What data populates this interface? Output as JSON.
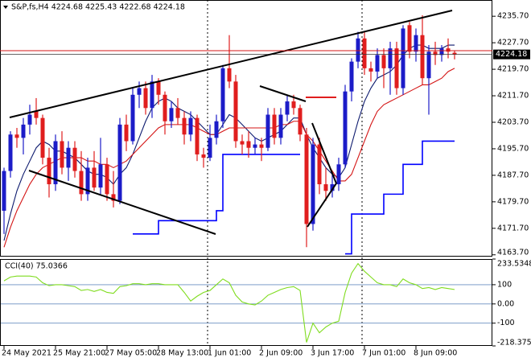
{
  "chart_data": [
    {
      "type": "candlestick",
      "title": "S&P,fs,H4  4224.68 4225.43 4222.68 4224.18",
      "categories": [
        "24 May 2021",
        null,
        null,
        null,
        null,
        null,
        null,
        null,
        "25 May 21:00",
        null,
        null,
        null,
        null,
        null,
        null,
        null,
        "27 May 05:00",
        null,
        null,
        null,
        null,
        null,
        null,
        null,
        "28 May 13:00",
        null,
        null,
        null,
        null,
        null,
        null,
        null,
        "1 Jun 01:00",
        null,
        null,
        null,
        null,
        null,
        null,
        null,
        "2 Jun 09:00",
        null,
        null,
        null,
        null,
        null,
        null,
        null,
        "3 Jun 17:00",
        null,
        null,
        null,
        null,
        null,
        null,
        null,
        "7 Jun 01:00",
        null,
        null,
        null,
        null,
        null,
        null,
        null,
        "8 Jun 09:00",
        null,
        null,
        null,
        null,
        null,
        null
      ],
      "open": [
        4177,
        4189,
        4200,
        4199,
        4203,
        4207,
        4205,
        4193,
        4185,
        4198,
        4190,
        4196,
        4189,
        4182,
        4190,
        4184,
        4191,
        4182,
        4180,
        4203,
        4198,
        4212,
        4214,
        4208,
        4216,
        4212,
        4204,
        4208,
        4205,
        4200,
        4205,
        4194,
        4193,
        4199,
        4204,
        4220,
        4216,
        4198,
        4198,
        4196,
        4197,
        4196,
        4206,
        4199,
        4206,
        4210,
        4208,
        4200,
        4173,
        4197,
        4185,
        4183,
        4185,
        4191,
        4213,
        4222,
        4229,
        4220,
        4219,
        4224,
        4220,
        4226,
        4214,
        4233,
        4225,
        4230,
        4217,
        4225,
        4224,
        4226,
        4224.68
      ],
      "high": [
        4190,
        4201,
        4202,
        4205,
        4209,
        4211,
        4206,
        4196,
        4200,
        4201,
        4198,
        4198,
        4195,
        4193,
        4195,
        4199,
        4193,
        4189,
        4205,
        4206,
        4214,
        4216,
        4216,
        4218,
        4217,
        4213,
        4210,
        4211,
        4207,
        4207,
        4206,
        4196,
        4203,
        4206,
        4221,
        4230,
        4218,
        4200,
        4201,
        4199,
        4199,
        4208,
        4208,
        4208,
        4212,
        4212,
        4209,
        4202,
        4199,
        4199,
        4190,
        4188,
        4193,
        4215,
        4223,
        4231,
        4231,
        4222,
        4226,
        4226,
        4228,
        4228,
        4233,
        4234,
        4232,
        4236,
        4227,
        4228,
        4227,
        4229,
        4225.43
      ],
      "low": [
        4170,
        4187,
        4196,
        4194,
        4200,
        4203,
        4191,
        4181,
        4183,
        4188,
        4186,
        4187,
        4180,
        4180,
        4183,
        4182,
        4180,
        4178,
        4179,
        4195,
        4197,
        4208,
        4206,
        4205,
        4209,
        4200,
        4202,
        4203,
        4197,
        4198,
        4192,
        4190,
        4192,
        4197,
        4202,
        4214,
        4196,
        4194,
        4193,
        4194,
        4192,
        4195,
        4197,
        4197,
        4204,
        4206,
        4198,
        4166,
        4171,
        4182,
        4180,
        4181,
        4183,
        4190,
        4210,
        4220,
        4218,
        4216,
        4217,
        4214,
        4212,
        4212,
        4212,
        4223,
        4222,
        4215,
        4206,
        4221,
        4222,
        4223,
        4222.68
      ],
      "close": [
        4189,
        4200,
        4199,
        4203,
        4206,
        4205,
        4193,
        4185,
        4198,
        4190,
        4196,
        4189,
        4182,
        4190,
        4184,
        4191,
        4182,
        4180,
        4203,
        4198,
        4212,
        4214,
        4208,
        4216,
        4212,
        4204,
        4208,
        4205,
        4200,
        4205,
        4194,
        4193,
        4199,
        4204,
        4220,
        4216,
        4198,
        4197,
        4196,
        4197,
        4196,
        4206,
        4199,
        4206,
        4210,
        4208,
        4200,
        4173,
        4197,
        4185,
        4183,
        4185,
        4191,
        4213,
        4222,
        4229,
        4220,
        4219,
        4224,
        4220,
        4226,
        4214,
        4232,
        4225,
        4230,
        4217,
        4225,
        4224,
        4226,
        4225,
        4224.18
      ],
      "up_color": "#1c1cc8",
      "down_color": "#e01e1e",
      "series": [
        {
          "color": "#0d1a6e",
          "values": [
            4168,
            4176,
            4183,
            4188,
            4192,
            4196,
            4198,
            4197,
            4195,
            4195,
            4194,
            4193,
            4191,
            4189,
            4188,
            4188,
            4187,
            4185,
            4188,
            4190,
            4194,
            4199,
            4204,
            4208,
            4210,
            4211,
            4210,
            4208,
            4207,
            4206,
            4204,
            4202,
            4200,
            4200,
            4203,
            4206,
            4205,
            4203,
            4201,
            4199,
            4198,
            4199,
            4200,
            4201,
            4203,
            4205,
            4205,
            4200,
            4196,
            4193,
            4190,
            4188,
            4187,
            4190,
            4197,
            4204,
            4210,
            4214,
            4217,
            4218,
            4219,
            4221,
            4224,
            4226,
            4227,
            4227,
            4226,
            4226,
            4226,
            4227,
            4227
          ]
        },
        {
          "color": "#d41414",
          "values": [
            4166,
            4172,
            4177,
            4181,
            4185,
            4188,
            4190,
            4191,
            4192,
            4193,
            4193,
            4193,
            4193,
            4192,
            4192,
            4191,
            4191,
            4190,
            4191,
            4192,
            4194,
            4196,
            4198,
            4200,
            4202,
            4203,
            4203,
            4203,
            4203,
            4203,
            4202,
            4201,
            4200,
            4200,
            4201,
            4202,
            4202,
            4202,
            4202,
            4202,
            4202,
            4202,
            4202,
            4203,
            4203,
            4204,
            4204,
            4200,
            4198,
            4195,
            4192,
            4189,
            4186,
            4186,
            4188,
            4193,
            4198,
            4203,
            4207,
            4209,
            4210,
            4211,
            4212,
            4213,
            4214,
            4215,
            4215,
            4216,
            4217,
            4219,
            4220
          ]
        },
        {
          "color": "#0000ff",
          "step": true,
          "values": [
            null,
            null,
            null,
            null,
            null,
            null,
            null,
            null,
            null,
            null,
            null,
            null,
            null,
            null,
            null,
            null,
            null,
            null,
            null,
            null,
            4170,
            4170,
            4170,
            4170,
            4174,
            4174,
            4174,
            4174,
            4174,
            4174,
            4174,
            4174,
            4174,
            4177,
            4194,
            4194,
            4194,
            4194,
            4194,
            4194,
            4194,
            4194,
            4194,
            4194,
            4194,
            4194,
            4194,
            null,
            null,
            null,
            null,
            null,
            null,
            4164,
            4176,
            4176,
            4176,
            4176,
            4176,
            4182,
            4182,
            4182,
            4191,
            4191,
            4191,
            4198,
            4198,
            4198,
            4198,
            4198,
            4198
          ]
        }
      ],
      "ylim": [
        4163.4,
        4240.6
      ],
      "yticks": [
        {
          "value": 4235.7,
          "label": "4235.70"
        },
        {
          "value": 4227.7,
          "label": "4227.70"
        },
        {
          "value": 4219.7,
          "label": "4219.70"
        },
        {
          "value": 4211.7,
          "label": "4211.70"
        },
        {
          "value": 4203.7,
          "label": "4203.70"
        },
        {
          "value": 4195.7,
          "label": "4195.70"
        },
        {
          "value": 4187.7,
          "label": "4187.70"
        },
        {
          "value": 4179.7,
          "label": "4179.70"
        },
        {
          "value": 4171.7,
          "label": "4171.70"
        },
        {
          "value": 4163.7,
          "label": "4163.70"
        }
      ]
    },
    {
      "type": "line",
      "title": "CCI(40) 75.0366",
      "series": [
        {
          "color": "#7fdc1e",
          "values": [
            120,
            140,
            145,
            145,
            145,
            140,
            110,
            95,
            100,
            100,
            95,
            90,
            70,
            75,
            65,
            75,
            60,
            55,
            90,
            95,
            105,
            105,
            100,
            105,
            105,
            100,
            100,
            100,
            60,
            15,
            40,
            60,
            70,
            100,
            130,
            110,
            45,
            10,
            0,
            -5,
            15,
            45,
            60,
            75,
            85,
            90,
            70,
            -200,
            -100,
            -150,
            -120,
            -100,
            -90,
            60,
            160,
            210,
            170,
            140,
            110,
            100,
            100,
            90,
            130,
            110,
            100,
            80,
            85,
            75,
            85,
            80,
            75.0366
          ]
        }
      ],
      "ylim": [
        -218.3753,
        233.5348
      ],
      "yticks": [
        233.5348,
        100,
        {
          "value": 0,
          "label": "0.00"
        },
        -100,
        -218.3753
      ]
    }
  ]
}
